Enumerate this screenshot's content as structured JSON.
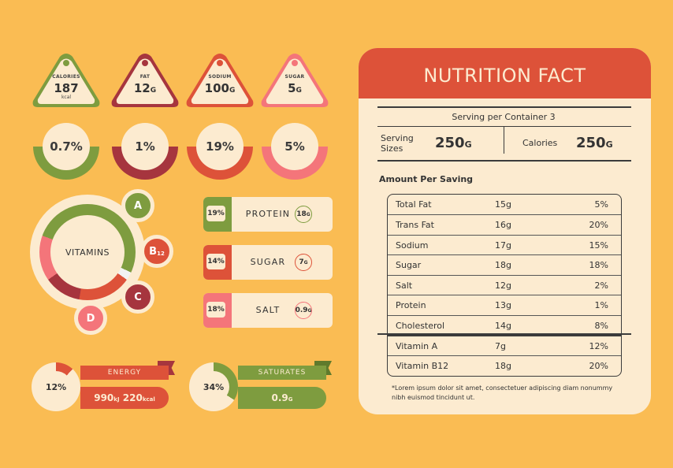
{
  "colors": {
    "background": "#FABC53",
    "cream": "#FCEBD0",
    "green": "#7E9C3F",
    "darkred": "#A6353E",
    "red": "#DD5239",
    "pink": "#F4757A"
  },
  "tags": [
    {
      "label": "CALORIES",
      "value": "187",
      "unit_small": "",
      "unit": "kcal",
      "percent": "0.7%",
      "color": "#7E9C3F"
    },
    {
      "label": "FAT",
      "value": "12",
      "unit_small": "G",
      "unit": "",
      "percent": "1%",
      "color": "#A6353E"
    },
    {
      "label": "SODIUM",
      "value": "100",
      "unit_small": "G",
      "unit": "",
      "percent": "19%",
      "color": "#DD5239"
    },
    {
      "label": "SUGAR",
      "value": "5",
      "unit_small": "G",
      "unit": "",
      "percent": "5%",
      "color": "#F4757A"
    }
  ],
  "vitamins": {
    "title": "VITAMINS",
    "badges": [
      {
        "letter": "A",
        "sub": "",
        "color": "#7E9C3F"
      },
      {
        "letter": "B",
        "sub": "12",
        "color": "#DD5239"
      },
      {
        "letter": "C",
        "sub": "",
        "color": "#A6353E"
      },
      {
        "letter": "D",
        "sub": "",
        "color": "#F4757A"
      }
    ]
  },
  "macros": [
    {
      "percent": "19%",
      "name": "PROTEIN",
      "value": "18",
      "unit": "G",
      "color": "#7E9C3F"
    },
    {
      "percent": "14%",
      "name": "SUGAR",
      "value": "7",
      "unit": "G",
      "color": "#DD5239"
    },
    {
      "percent": "18%",
      "name": "SALT",
      "value": "0.9",
      "unit": "G",
      "color": "#F4757A"
    }
  ],
  "energy": {
    "percent": "12%",
    "label": "ENERGY",
    "kj": "990",
    "kj_unit": "kJ",
    "kcal": "220",
    "kcal_unit": "kcal",
    "fraction": 0.12
  },
  "saturates": {
    "percent": "34%",
    "label": "SATURATES",
    "value": "0.9",
    "unit": "G",
    "fraction": 0.34
  },
  "card": {
    "title": "NUTRITION FACT",
    "serving_per": "Serving per Container 3",
    "serving_label_1": "Serving",
    "serving_label_2": "Sizes",
    "serving_value": "250",
    "serving_unit": "G",
    "calories_label": "Calories",
    "calories_value": "250",
    "calories_unit": "G",
    "amount_label": "Amount Per Saving",
    "rows": [
      {
        "name": "Total Fat",
        "grams": "15g",
        "percent": "5%"
      },
      {
        "name": "Trans Fat",
        "grams": "16g",
        "percent": "20%"
      },
      {
        "name": "Sodium",
        "grams": "17g",
        "percent": "15%"
      },
      {
        "name": "Sugar",
        "grams": "18g",
        "percent": "18%"
      },
      {
        "name": "Salt",
        "grams": "12g",
        "percent": "2%"
      },
      {
        "name": "Protein",
        "grams": "13g",
        "percent": "1%"
      },
      {
        "name": "Cholesterol",
        "grams": "14g",
        "percent": "8%"
      }
    ],
    "vitamin_rows": [
      {
        "name": "Vitamin A",
        "grams": "7g",
        "percent": "12%"
      },
      {
        "name": "Vitamin B12",
        "grams": "18g",
        "percent": "20%"
      }
    ],
    "note": "*Lorem ipsum dolor sit amet, consectetuer adipiscing diam nonummy nibh euismod tincidunt ut."
  }
}
